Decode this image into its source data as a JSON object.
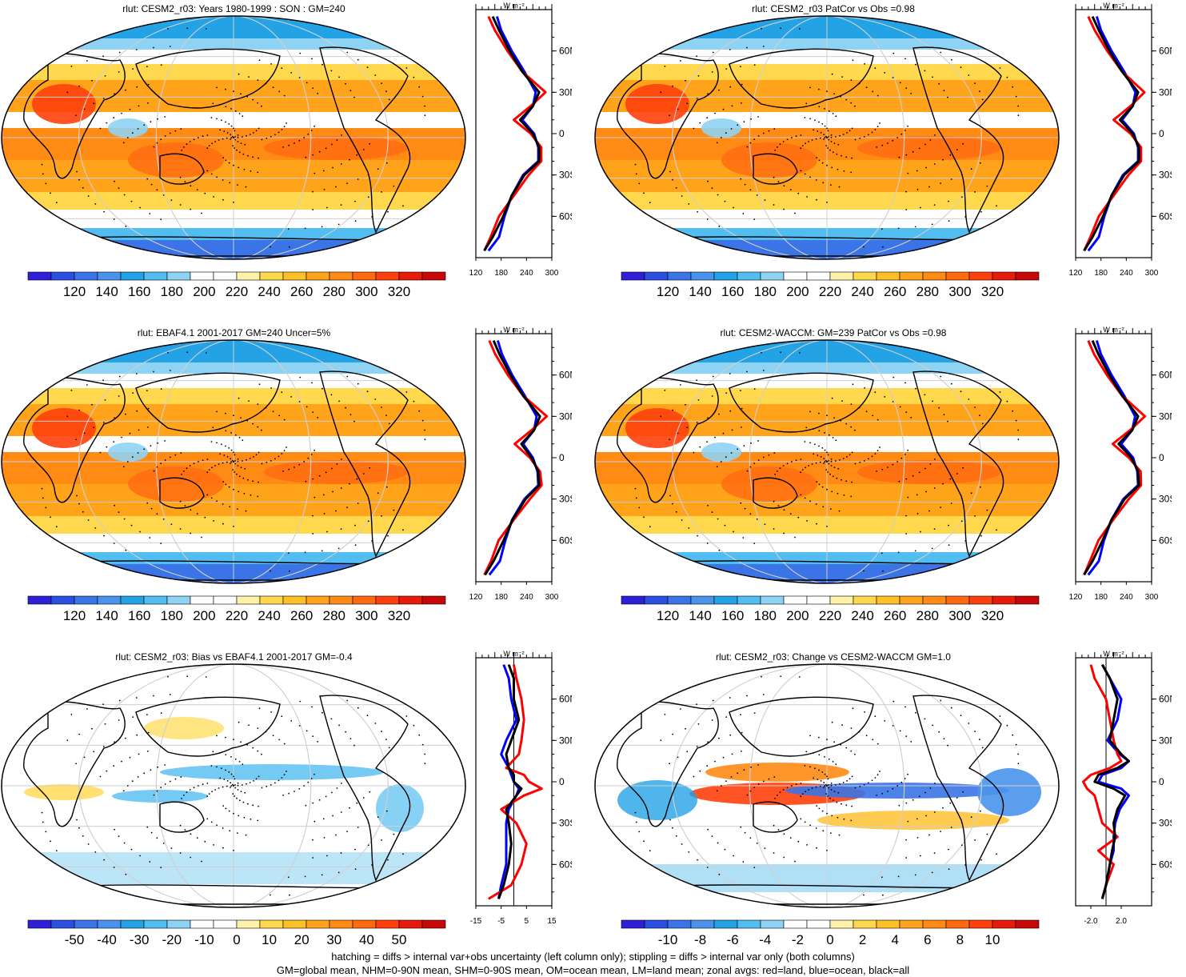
{
  "footer": {
    "line1": "hatching = diffs > internal var+obs uncertainty (left column only); stippling = diffs > internal var only (both columns)",
    "line2": "GM=global mean, NHM=0-90N mean, SHM=0-90S mean, OM=ocean mean, LM=land mean; zonal avgs: red=land, blue=ocean, black=all"
  },
  "profile_unit": "W m⁻²",
  "lat_labels": [
    "60N",
    "30N",
    "0",
    "30S",
    "60S"
  ],
  "palettes": {
    "abs": [
      "#2f1fd6",
      "#2b4fe0",
      "#3a74e6",
      "#4a93ec",
      "#23a3e6",
      "#52bdf0",
      "#8fd3f4",
      "#ffffff",
      "#ffffff",
      "#fff2a8",
      "#ffd84d",
      "#ffbf26",
      "#ffa31a",
      "#ff8a14",
      "#ff6a10",
      "#ff400c",
      "#e81a0a",
      "#c80808"
    ],
    "diff": [
      "#2f1fd6",
      "#2b4fe0",
      "#3a74e6",
      "#4a93ec",
      "#23a3e6",
      "#52bdf0",
      "#8fd3f4",
      "#ffffff",
      "#ffffff",
      "#fff2a8",
      "#ffd84d",
      "#ffbf26",
      "#ffa31a",
      "#ff8a14",
      "#ff6a10",
      "#ff400c",
      "#e81a0a",
      "#c80808"
    ]
  },
  "panels": [
    {
      "title": "rlut: CESM2_r03: Years 1980-1999 : SON : GM=240",
      "colorbar_labels": [
        "120",
        "140",
        "160",
        "180",
        "200",
        "220",
        "240",
        "260",
        "280",
        "300",
        "320"
      ],
      "profile_ticks": [
        "120",
        "180",
        "240",
        "300"
      ]
    },
    {
      "title": "rlut: CESM2_r03 PatCor vs Obs =0.98",
      "colorbar_labels": [
        "120",
        "140",
        "160",
        "180",
        "200",
        "220",
        "240",
        "260",
        "280",
        "300",
        "320"
      ],
      "profile_ticks": [
        "120",
        "180",
        "240",
        "300"
      ]
    },
    {
      "title": "rlut: EBAF4.1 2001-2017 GM=240 Uncer=5%",
      "colorbar_labels": [
        "120",
        "140",
        "160",
        "180",
        "200",
        "220",
        "240",
        "260",
        "280",
        "300",
        "320"
      ],
      "profile_ticks": [
        "120",
        "180",
        "240",
        "300"
      ]
    },
    {
      "title": "rlut: CESM2-WACCM: GM=239 PatCor vs Obs =0.98",
      "colorbar_labels": [
        "120",
        "140",
        "160",
        "180",
        "200",
        "220",
        "240",
        "260",
        "280",
        "300",
        "320"
      ],
      "profile_ticks": [
        "120",
        "180",
        "240",
        "300"
      ]
    },
    {
      "title": "rlut: CESM2_r03: Bias vs EBAF4.1 2001-2017  GM=-0.4",
      "colorbar_labels": [
        "-50",
        "-40",
        "-30",
        "-20",
        "-10",
        "0",
        "10",
        "20",
        "30",
        "40",
        "50"
      ],
      "profile_ticks": [
        "-15",
        "-5",
        "5",
        "15"
      ]
    },
    {
      "title": "rlut: CESM2_r03: Change vs CESM2-WACCM GM=1.0",
      "colorbar_labels": [
        "-10",
        "-8",
        "-6",
        "-4",
        "-2",
        "0",
        "2",
        "4",
        "6",
        "8",
        "10"
      ],
      "profile_ticks": [
        "-2.0",
        "2.0"
      ]
    }
  ],
  "chart_data": [
    {
      "type": "line",
      "title": "rlut: CESM2_r03: Years 1980-1999 : SON : GM=240",
      "xlim": [
        120,
        300
      ],
      "y": [
        85,
        75,
        60,
        45,
        30,
        20,
        10,
        0,
        -10,
        -20,
        -30,
        -45,
        -60,
        -75,
        -85
      ],
      "series": [
        {
          "name": "all",
          "values": [
            160,
            175,
            200,
            230,
            270,
            255,
            225,
            255,
            270,
            270,
            235,
            205,
            185,
            160,
            140
          ]
        },
        {
          "name": "land",
          "values": [
            150,
            165,
            195,
            230,
            285,
            250,
            210,
            250,
            275,
            275,
            245,
            210,
            175,
            155,
            140
          ]
        },
        {
          "name": "ocean",
          "values": [
            170,
            180,
            205,
            235,
            262,
            255,
            230,
            258,
            268,
            268,
            232,
            205,
            188,
            175,
            150
          ]
        }
      ]
    },
    {
      "type": "line",
      "title": "rlut: CESM2_r03 PatCor vs Obs =0.98",
      "xlim": [
        120,
        300
      ],
      "y": [
        85,
        75,
        60,
        45,
        30,
        20,
        10,
        0,
        -10,
        -20,
        -30,
        -45,
        -60,
        -75,
        -85
      ],
      "series": [
        {
          "name": "all",
          "values": [
            160,
            175,
            200,
            230,
            268,
            255,
            225,
            255,
            270,
            270,
            235,
            205,
            185,
            160,
            140
          ]
        },
        {
          "name": "land",
          "values": [
            150,
            165,
            195,
            230,
            283,
            250,
            210,
            250,
            275,
            275,
            245,
            210,
            175,
            155,
            140
          ]
        },
        {
          "name": "ocean",
          "values": [
            170,
            180,
            205,
            235,
            262,
            255,
            230,
            258,
            268,
            268,
            232,
            205,
            188,
            175,
            150
          ]
        }
      ]
    },
    {
      "type": "line",
      "title": "rlut: EBAF4.1 2001-2017 GM=240 Uncer=5%",
      "xlim": [
        120,
        300
      ],
      "y": [
        85,
        75,
        60,
        45,
        30,
        20,
        10,
        0,
        -10,
        -20,
        -30,
        -45,
        -60,
        -75,
        -85
      ],
      "series": [
        {
          "name": "all",
          "values": [
            162,
            176,
            202,
            232,
            272,
            258,
            228,
            252,
            268,
            270,
            238,
            207,
            186,
            162,
            142
          ]
        },
        {
          "name": "land",
          "values": [
            152,
            166,
            196,
            232,
            288,
            252,
            212,
            248,
            272,
            276,
            248,
            210,
            174,
            156,
            140
          ]
        },
        {
          "name": "ocean",
          "values": [
            172,
            182,
            206,
            236,
            264,
            258,
            232,
            255,
            266,
            268,
            235,
            206,
            190,
            177,
            152
          ]
        }
      ]
    },
    {
      "type": "line",
      "title": "rlut: CESM2-WACCM: GM=239 PatCor vs Obs =0.98",
      "xlim": [
        120,
        300
      ],
      "y": [
        85,
        75,
        60,
        45,
        30,
        20,
        10,
        0,
        -10,
        -20,
        -30,
        -45,
        -60,
        -75,
        -85
      ],
      "series": [
        {
          "name": "all",
          "values": [
            160,
            174,
            200,
            230,
            268,
            254,
            222,
            252,
            268,
            270,
            236,
            205,
            184,
            160,
            140
          ]
        },
        {
          "name": "land",
          "values": [
            150,
            164,
            194,
            230,
            284,
            249,
            208,
            246,
            274,
            275,
            246,
            209,
            174,
            154,
            140
          ]
        },
        {
          "name": "ocean",
          "values": [
            170,
            180,
            205,
            235,
            261,
            254,
            228,
            256,
            266,
            268,
            233,
            205,
            187,
            175,
            150
          ]
        }
      ]
    },
    {
      "type": "line",
      "title": "rlut: CESM2_r03: Bias vs EBAF4.1 2001-2017  GM=-0.4",
      "xlim": [
        -15,
        15
      ],
      "y": [
        85,
        75,
        60,
        45,
        30,
        20,
        10,
        5,
        0,
        -5,
        -10,
        -20,
        -30,
        -45,
        -60,
        -75,
        -85
      ],
      "series": [
        {
          "name": "all",
          "values": [
            -2,
            0,
            0,
            2,
            -1,
            -3,
            -2,
            0,
            0,
            3,
            1,
            -3,
            -2,
            -1,
            -2,
            -4,
            -6
          ]
        },
        {
          "name": "land",
          "values": [
            0,
            1,
            3,
            4,
            3,
            2,
            -3,
            4,
            6,
            11,
            4,
            -5,
            1,
            5,
            3,
            -1,
            -10
          ]
        },
        {
          "name": "ocean",
          "values": [
            -4,
            -2,
            -1,
            1,
            -3,
            -5,
            -2,
            -1,
            0,
            2,
            1,
            -2,
            -3,
            -3,
            -3,
            -5,
            -6
          ]
        }
      ]
    },
    {
      "type": "line",
      "title": "rlut: CESM2_r03: Change vs CESM2-WACCM GM=1.0",
      "xlim": [
        -4,
        6
      ],
      "y": [
        85,
        75,
        60,
        45,
        30,
        20,
        15,
        10,
        5,
        0,
        -5,
        -10,
        -20,
        -30,
        -40,
        -50,
        -60,
        -75,
        -85
      ],
      "series": [
        {
          "name": "all",
          "values": [
            -0.5,
            0.5,
            1.5,
            1.0,
            0.5,
            2.0,
            3.0,
            1.5,
            -1.0,
            -1.5,
            1.0,
            2.5,
            1.5,
            1.0,
            1.2,
            0.8,
            0.5,
            0,
            -0.5
          ]
        },
        {
          "name": "land",
          "values": [
            -2.0,
            -1.5,
            0,
            0.5,
            1.0,
            1.5,
            2.0,
            0.5,
            -2.0,
            -3.0,
            -2.5,
            -1.5,
            -1.0,
            -0.5,
            1.5,
            -1.0,
            1.0,
            0,
            -0.5
          ]
        },
        {
          "name": "ocean",
          "values": [
            -0.5,
            0.5,
            2.0,
            1.5,
            0.2,
            1.8,
            3.0,
            2.0,
            -0.5,
            -1.0,
            2.0,
            3.0,
            1.8,
            1.2,
            1.0,
            1.0,
            0.5,
            0,
            -0.5
          ]
        }
      ]
    }
  ]
}
